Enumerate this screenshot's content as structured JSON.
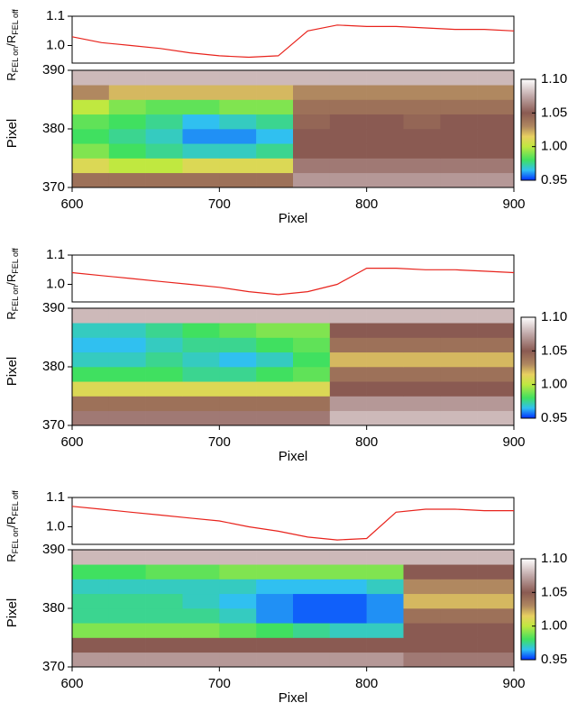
{
  "chart_data": [
    {
      "type": "line",
      "y_label_parts": [
        "R",
        "FEL on",
        "/R",
        "FEL off"
      ],
      "xlim": [
        600,
        900
      ],
      "ylim": [
        0.94,
        1.1
      ],
      "yticks": [
        {
          "value": 1.0,
          "label": "1.0"
        },
        1.1
      ],
      "color": "#e8231c",
      "x": [
        600,
        620,
        640,
        660,
        680,
        700,
        720,
        740,
        760,
        780,
        800,
        820,
        840,
        860,
        880,
        900
      ],
      "values": [
        1.03,
        1.01,
        1.0,
        0.99,
        0.975,
        0.965,
        0.96,
        0.965,
        1.05,
        1.07,
        1.065,
        1.065,
        1.06,
        1.055,
        1.055,
        1.05
      ]
    },
    {
      "type": "heatmap",
      "x_label": "Pixel",
      "y_label": "Pixel",
      "xlim": [
        600,
        900
      ],
      "ylim": [
        370,
        390
      ],
      "xticks": [
        600,
        700,
        800,
        900
      ],
      "yticks": [
        370,
        380,
        390
      ],
      "xbins": [
        600,
        625,
        650,
        675,
        700,
        725,
        750,
        775,
        800,
        825,
        850,
        875,
        900
      ],
      "ybins": [
        370,
        372.5,
        375,
        377.5,
        380,
        382.5,
        385,
        387.5,
        390
      ],
      "clim": [
        0.95,
        1.1
      ],
      "cticks": [
        0.95,
        {
          "value": 1.0,
          "label": "1.00"
        },
        1.05,
        {
          "value": 1.1,
          "label": "1.10"
        }
      ],
      "colorscale": [
        [
          0.95,
          "#0030ff"
        ],
        [
          0.965,
          "#30c0f0"
        ],
        [
          0.98,
          "#40e060"
        ],
        [
          1.0,
          "#c0e840"
        ],
        [
          1.015,
          "#e8d060"
        ],
        [
          1.03,
          "#b08860"
        ],
        [
          1.05,
          "#8a5a52"
        ],
        [
          1.075,
          "#c0a8a8"
        ],
        [
          1.1,
          "#ffffff"
        ]
      ],
      "z": [
        [
          1.04,
          1.04,
          1.04,
          1.04,
          1.04,
          1.04,
          1.07,
          1.07,
          1.07,
          1.07,
          1.07,
          1.07
        ],
        [
          1.01,
          1.0,
          1.0,
          1.01,
          1.01,
          1.01,
          1.06,
          1.06,
          1.06,
          1.06,
          1.06,
          1.06
        ],
        [
          0.99,
          0.98,
          0.975,
          0.97,
          0.97,
          0.975,
          1.05,
          1.05,
          1.05,
          1.05,
          1.05,
          1.05
        ],
        [
          0.98,
          0.975,
          0.97,
          0.96,
          0.96,
          0.965,
          1.05,
          1.05,
          1.05,
          1.05,
          1.05,
          1.05
        ],
        [
          0.985,
          0.98,
          0.975,
          0.965,
          0.97,
          0.975,
          1.045,
          1.05,
          1.05,
          1.045,
          1.05,
          1.05
        ],
        [
          1.0,
          0.99,
          0.985,
          0.985,
          0.99,
          0.99,
          1.04,
          1.04,
          1.04,
          1.04,
          1.04,
          1.04
        ],
        [
          1.03,
          1.02,
          1.02,
          1.02,
          1.02,
          1.02,
          1.03,
          1.03,
          1.03,
          1.03,
          1.03,
          1.03
        ],
        [
          1.08,
          1.08,
          1.08,
          1.08,
          1.08,
          1.08,
          1.08,
          1.08,
          1.08,
          1.08,
          1.08,
          1.08
        ]
      ]
    },
    {
      "type": "line",
      "y_label_parts": [
        "R",
        "FEL on",
        "/R",
        "FEL off"
      ],
      "xlim": [
        600,
        900
      ],
      "ylim": [
        0.94,
        1.1
      ],
      "yticks": [
        {
          "value": 1.0,
          "label": "1.0"
        },
        1.1
      ],
      "color": "#e8231c",
      "x": [
        600,
        620,
        640,
        660,
        680,
        700,
        720,
        740,
        760,
        780,
        800,
        820,
        840,
        860,
        880,
        900
      ],
      "values": [
        1.04,
        1.03,
        1.02,
        1.01,
        1.0,
        0.99,
        0.975,
        0.965,
        0.975,
        1.0,
        1.055,
        1.055,
        1.05,
        1.05,
        1.045,
        1.04
      ]
    },
    {
      "type": "heatmap",
      "x_label": "Pixel",
      "y_label": "Pixel",
      "xlim": [
        600,
        900
      ],
      "ylim": [
        370,
        390
      ],
      "xticks": [
        600,
        700,
        800,
        900
      ],
      "yticks": [
        370,
        380,
        390
      ],
      "xbins": [
        600,
        625,
        650,
        675,
        700,
        725,
        750,
        775,
        800,
        825,
        850,
        875,
        900
      ],
      "ybins": [
        370,
        372.5,
        375,
        377.5,
        380,
        382.5,
        385,
        387.5,
        390
      ],
      "clim": [
        0.95,
        1.1
      ],
      "cticks": [
        0.95,
        {
          "value": 1.0,
          "label": "1.00"
        },
        1.05,
        {
          "value": 1.1,
          "label": "1.10"
        }
      ],
      "colorscale": [
        [
          0.95,
          "#0030ff"
        ],
        [
          0.965,
          "#30c0f0"
        ],
        [
          0.98,
          "#40e060"
        ],
        [
          1.0,
          "#c0e840"
        ],
        [
          1.015,
          "#e8d060"
        ],
        [
          1.03,
          "#b08860"
        ],
        [
          1.05,
          "#8a5a52"
        ],
        [
          1.075,
          "#c0a8a8"
        ],
        [
          1.1,
          "#ffffff"
        ]
      ],
      "z": [
        [
          1.06,
          1.06,
          1.06,
          1.06,
          1.06,
          1.06,
          1.06,
          1.08,
          1.08,
          1.08,
          1.08,
          1.08
        ],
        [
          1.04,
          1.04,
          1.04,
          1.04,
          1.04,
          1.04,
          1.04,
          1.07,
          1.07,
          1.07,
          1.07,
          1.07
        ],
        [
          1.01,
          1.01,
          1.01,
          1.01,
          1.01,
          1.01,
          1.01,
          1.05,
          1.05,
          1.05,
          1.05,
          1.05
        ],
        [
          0.98,
          0.98,
          0.98,
          0.975,
          0.975,
          0.98,
          0.985,
          1.04,
          1.04,
          1.04,
          1.04,
          1.04
        ],
        [
          0.97,
          0.97,
          0.975,
          0.97,
          0.965,
          0.97,
          0.98,
          1.02,
          1.02,
          1.02,
          1.02,
          1.02
        ],
        [
          0.965,
          0.965,
          0.97,
          0.975,
          0.975,
          0.98,
          0.985,
          1.04,
          1.04,
          1.04,
          1.04,
          1.04
        ],
        [
          0.97,
          0.97,
          0.975,
          0.98,
          0.985,
          0.99,
          0.99,
          1.05,
          1.05,
          1.05,
          1.05,
          1.05
        ],
        [
          1.08,
          1.08,
          1.08,
          1.08,
          1.08,
          1.08,
          1.08,
          1.08,
          1.08,
          1.08,
          1.08,
          1.08
        ]
      ]
    },
    {
      "type": "line",
      "y_label_parts": [
        "R",
        "FEL on",
        "/R",
        "FEL off"
      ],
      "xlim": [
        600,
        900
      ],
      "ylim": [
        0.94,
        1.1
      ],
      "yticks": [
        {
          "value": 1.0,
          "label": "1.0"
        },
        1.1
      ],
      "color": "#e8231c",
      "x": [
        600,
        620,
        640,
        660,
        680,
        700,
        720,
        740,
        760,
        780,
        800,
        820,
        840,
        860,
        880,
        900
      ],
      "values": [
        1.07,
        1.06,
        1.05,
        1.04,
        1.03,
        1.02,
        1.0,
        0.985,
        0.965,
        0.955,
        0.96,
        1.05,
        1.06,
        1.06,
        1.055,
        1.055
      ]
    },
    {
      "type": "heatmap",
      "x_label": "Pixel",
      "y_label": "Pixel",
      "xlim": [
        600,
        900
      ],
      "ylim": [
        370,
        390
      ],
      "xticks": [
        600,
        700,
        800,
        900
      ],
      "yticks": [
        370,
        380,
        390
      ],
      "xbins": [
        600,
        625,
        650,
        675,
        700,
        725,
        750,
        775,
        800,
        825,
        850,
        875,
        900
      ],
      "ybins": [
        370,
        372.5,
        375,
        377.5,
        380,
        382.5,
        385,
        387.5,
        390
      ],
      "clim": [
        0.95,
        1.1
      ],
      "cticks": [
        0.95,
        {
          "value": 1.0,
          "label": "1.00"
        },
        1.05,
        {
          "value": 1.1,
          "label": "1.10"
        }
      ],
      "colorscale": [
        [
          0.95,
          "#0030ff"
        ],
        [
          0.965,
          "#30c0f0"
        ],
        [
          0.98,
          "#40e060"
        ],
        [
          1.0,
          "#c0e840"
        ],
        [
          1.015,
          "#e8d060"
        ],
        [
          1.03,
          "#b08860"
        ],
        [
          1.05,
          "#8a5a52"
        ],
        [
          1.075,
          "#c0a8a8"
        ],
        [
          1.1,
          "#ffffff"
        ]
      ],
      "z": [
        [
          1.07,
          1.07,
          1.07,
          1.07,
          1.07,
          1.07,
          1.07,
          1.07,
          1.07,
          1.06,
          1.06,
          1.06
        ],
        [
          1.05,
          1.05,
          1.05,
          1.05,
          1.05,
          1.05,
          1.05,
          1.05,
          1.05,
          1.05,
          1.05,
          1.05
        ],
        [
          0.99,
          0.99,
          0.99,
          0.99,
          0.985,
          0.98,
          0.975,
          0.97,
          0.97,
          1.05,
          1.05,
          1.05
        ],
        [
          0.975,
          0.975,
          0.975,
          0.975,
          0.97,
          0.96,
          0.955,
          0.955,
          0.96,
          1.04,
          1.04,
          1.04
        ],
        [
          0.975,
          0.975,
          0.975,
          0.97,
          0.965,
          0.96,
          0.955,
          0.955,
          0.96,
          1.02,
          1.02,
          1.02
        ],
        [
          0.97,
          0.97,
          0.97,
          0.97,
          0.97,
          0.965,
          0.965,
          0.965,
          0.97,
          1.03,
          1.03,
          1.03
        ],
        [
          0.98,
          0.98,
          0.985,
          0.985,
          0.99,
          0.99,
          0.99,
          0.99,
          0.99,
          1.05,
          1.05,
          1.05
        ],
        [
          1.08,
          1.08,
          1.08,
          1.08,
          1.08,
          1.08,
          1.08,
          1.08,
          1.08,
          1.08,
          1.08,
          1.08
        ]
      ]
    }
  ]
}
